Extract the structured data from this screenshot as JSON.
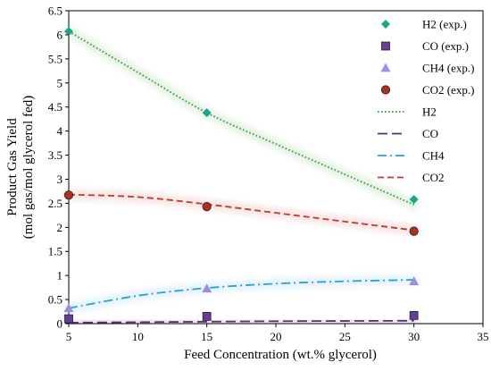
{
  "chart_data": {
    "type": "scatter",
    "xlabel": "Feed Concentration (wt.% glycerol)",
    "ylabel_line1": "Product Gas Yield",
    "ylabel_line2": "(mol gas/mol glycerol fed)",
    "xlim": [
      5,
      35
    ],
    "ylim": [
      0,
      6.5
    ],
    "x_ticks": [
      5,
      10,
      15,
      20,
      25,
      30,
      35
    ],
    "y_ticks": [
      0,
      0.5,
      1,
      1.5,
      2,
      2.5,
      3,
      3.5,
      4,
      4.5,
      5,
      5.5,
      6,
      6.5
    ],
    "grid": false,
    "legend_position": "top-right",
    "series": [
      {
        "name": "H2 (exp.)",
        "kind": "marker",
        "marker": "diamond",
        "color": "#1aa58a",
        "x": [
          5,
          15,
          30
        ],
        "y": [
          6.07,
          4.38,
          2.58
        ]
      },
      {
        "name": "CO (exp.)",
        "kind": "marker",
        "marker": "square",
        "color": "#6a3d9a",
        "x": [
          5,
          15,
          30
        ],
        "y": [
          0.1,
          0.15,
          0.17
        ]
      },
      {
        "name": "CH4 (exp.)",
        "kind": "marker",
        "marker": "triangle",
        "color": "#9a8fe0",
        "x": [
          5,
          15,
          30
        ],
        "y": [
          0.32,
          0.73,
          0.88
        ]
      },
      {
        "name": "CO2 (exp.)",
        "kind": "marker",
        "marker": "circle",
        "color": "#b03020",
        "x": [
          5,
          15,
          30
        ],
        "y": [
          2.67,
          2.43,
          1.92
        ]
      },
      {
        "name": "H2",
        "kind": "line",
        "dash": "dotted",
        "color": "#2ca02c",
        "x": [
          5,
          10,
          15,
          20,
          25,
          30
        ],
        "y": [
          6.07,
          5.22,
          4.38,
          3.73,
          3.1,
          2.47
        ]
      },
      {
        "name": "CO",
        "kind": "line",
        "dash": "long-dash",
        "color": "#5b2c83",
        "x": [
          5,
          10,
          15,
          20,
          25,
          30
        ],
        "y": [
          0.02,
          0.03,
          0.04,
          0.05,
          0.055,
          0.06
        ]
      },
      {
        "name": "CH4",
        "kind": "line",
        "dash": "dash-dot",
        "color": "#2a9fd6",
        "x": [
          5,
          10,
          15,
          20,
          25,
          30
        ],
        "y": [
          0.32,
          0.58,
          0.74,
          0.83,
          0.88,
          0.91
        ]
      },
      {
        "name": "CO2",
        "kind": "line",
        "dash": "dashed",
        "color": "#c0392b",
        "x": [
          5,
          10,
          15,
          20,
          25,
          30
        ],
        "y": [
          2.68,
          2.63,
          2.48,
          2.3,
          2.12,
          1.94
        ]
      }
    ]
  }
}
